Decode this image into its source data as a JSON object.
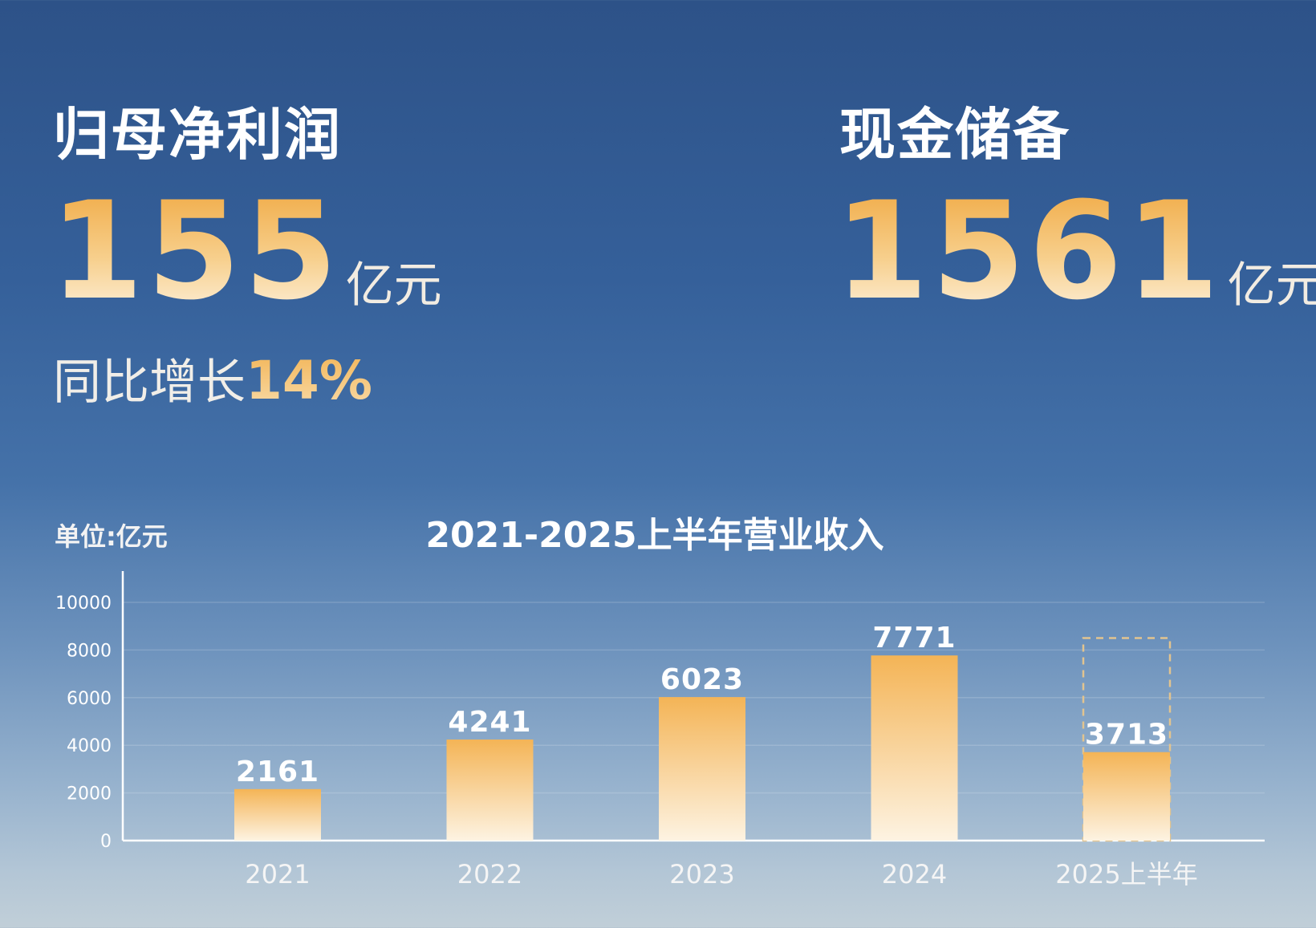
{
  "kpis": {
    "net_profit": {
      "title": "归母净利润",
      "value": "155",
      "unit": "亿元",
      "growth_label": "同比增长",
      "growth_value": "14%"
    },
    "cash_reserve": {
      "title": "现金储备",
      "value": "1561",
      "unit": "亿元"
    }
  },
  "colors": {
    "bar_top": "#f4b456",
    "bar_bottom": "#fdf3e2",
    "accent": "#f0a943"
  },
  "chart_data": {
    "type": "bar",
    "title": "2021-2025上半年营业收入",
    "unit_label": "单位:亿元",
    "categories": [
      "2021",
      "2022",
      "2023",
      "2024",
      "2025上半年"
    ],
    "values": [
      2161,
      4241,
      6023,
      7771,
      3713
    ],
    "value_labels": [
      "2161",
      "4241",
      "6023",
      "7771",
      "3713"
    ],
    "y_ticks": [
      "0",
      "2000",
      "4000",
      "6000",
      "8000",
      "10000"
    ],
    "ylim": [
      0,
      10000
    ],
    "grid": true,
    "dashed_placeholder_value": 8500,
    "dashed_placeholder_category": "2025上半年"
  }
}
